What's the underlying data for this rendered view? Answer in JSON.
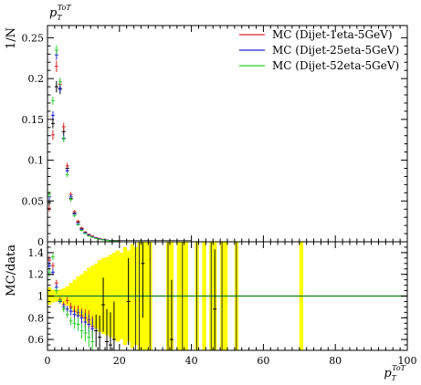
{
  "chart_data": [
    {
      "type": "scatter",
      "panel": "main",
      "title": "",
      "xlabel": "",
      "ylabel": "1/N",
      "ylim": [
        0,
        0.265
      ],
      "xlim": [
        0,
        100
      ],
      "x_ticks": [],
      "y_ticks": [
        0,
        0.05,
        0.1,
        0.15,
        0.2,
        0.25
      ],
      "y_tick_labels": [
        "0",
        "0.05",
        "0.1",
        "0.15",
        "0.2",
        "0.25"
      ],
      "grid": false,
      "legend_position": "top-right",
      "series": [
        {
          "name": "MC (Dijet-1eta-5GeV)",
          "color": "#d62728",
          "x": [
            0.5,
            1.5,
            2.5,
            3.5,
            4.5,
            5.5,
            6.5,
            7.5,
            8.5,
            9.5,
            10.5,
            11.5,
            12.5,
            13.5,
            14.5,
            15.5,
            16.5,
            17.5,
            18.5,
            19.5
          ],
          "y": [
            0.041,
            0.131,
            0.215,
            0.193,
            0.141,
            0.093,
            0.058,
            0.037,
            0.025,
            0.017,
            0.012,
            0.009,
            0.007,
            0.005,
            0.004,
            0.003,
            0.002,
            0.0015,
            0.001,
            0.0008
          ],
          "yerr": [
            0.004,
            0.006,
            0.007,
            0.006,
            0.005,
            0.004,
            0.003,
            0.002,
            0.002,
            0.0015,
            0.001,
            0.001,
            0.0008,
            0.0007,
            0.0006,
            0.0005,
            0.0004,
            0.0004,
            0.0003,
            0.0003
          ]
        },
        {
          "name": "MC (Dijet-25eta-5GeV)",
          "color": "#1f1fd6",
          "x": [
            0.5,
            1.5,
            2.5,
            3.5,
            4.5,
            5.5,
            6.5,
            7.5,
            8.5,
            9.5,
            10.5,
            11.5,
            12.5,
            13.5,
            14.5,
            15.5,
            16.5,
            17.5,
            18.5,
            19.5
          ],
          "y": [
            0.055,
            0.155,
            0.229,
            0.188,
            0.127,
            0.087,
            0.055,
            0.034,
            0.022,
            0.015,
            0.011,
            0.008,
            0.006,
            0.0045,
            0.0035,
            0.0027,
            0.002,
            0.0014,
            0.001,
            0.0007
          ],
          "yerr": [
            0.004,
            0.005,
            0.006,
            0.005,
            0.004,
            0.003,
            0.003,
            0.002,
            0.0015,
            0.0012,
            0.001,
            0.0008,
            0.0007,
            0.0006,
            0.0005,
            0.0004,
            0.0004,
            0.0003,
            0.0003,
            0.0003
          ]
        },
        {
          "name": "MC (Dijet-52eta-5GeV)",
          "color": "#2ecc2e",
          "x": [
            0.5,
            1.5,
            2.5,
            3.5,
            4.5,
            5.5,
            6.5,
            7.5,
            8.5,
            9.5,
            10.5,
            11.5,
            12.5,
            13.5,
            14.5,
            15.5,
            16.5,
            17.5,
            18.5,
            19.5
          ],
          "y": [
            0.058,
            0.173,
            0.235,
            0.196,
            0.126,
            0.082,
            0.052,
            0.032,
            0.021,
            0.014,
            0.01,
            0.007,
            0.0055,
            0.004,
            0.003,
            0.0023,
            0.0017,
            0.0012,
            0.0009,
            0.0006
          ],
          "yerr": [
            0.004,
            0.005,
            0.006,
            0.005,
            0.004,
            0.003,
            0.003,
            0.002,
            0.0015,
            0.0012,
            0.001,
            0.0008,
            0.0007,
            0.0006,
            0.0005,
            0.0004,
            0.0004,
            0.0003,
            0.0003,
            0.0003
          ]
        }
      ],
      "data": {
        "color": "#000000",
        "x": [
          0.5,
          1.5,
          2.5,
          3.5,
          4.5,
          5.5,
          6.5,
          7.5,
          8.5,
          9.5,
          10.5,
          11.5,
          12.5,
          13.5,
          14.5,
          15.5,
          16.5,
          17.5,
          18.5,
          19.5
        ],
        "y": [
          0.048,
          0.145,
          0.19,
          0.187,
          0.135,
          0.09,
          0.053,
          0.035,
          0.024,
          0.016,
          0.0115,
          0.0085,
          0.0065,
          0.0048,
          0.0036,
          0.0028,
          0.0021,
          0.0015,
          0.0011,
          0.0008
        ],
        "yerr": [
          0.004,
          0.006,
          0.007,
          0.006,
          0.005,
          0.004,
          0.003,
          0.002,
          0.002,
          0.0015,
          0.001,
          0.001,
          0.0008,
          0.0007,
          0.0006,
          0.0005,
          0.0004,
          0.0004,
          0.0003,
          0.0003
        ]
      }
    },
    {
      "type": "scatter",
      "panel": "ratio",
      "title": "",
      "xlabel": "p_T^ToT",
      "ylabel": "MC/data",
      "ylim": [
        0.5,
        1.5
      ],
      "xlim": [
        0,
        100
      ],
      "x_ticks": [
        0,
        20,
        40,
        60,
        80,
        100
      ],
      "x_tick_labels": [
        "0",
        "20",
        "40",
        "60",
        "80",
        "100"
      ],
      "y_ticks": [
        0.6,
        0.8,
        1,
        1.2,
        1.4
      ],
      "y_tick_labels": [
        "0.6",
        "0.8",
        "1",
        "1.2",
        "1.4"
      ],
      "reference_line": 1,
      "reference_color": "#2a8a2a",
      "band_color": "#ffff00",
      "band": {
        "x": [
          0.5,
          1.5,
          2.5,
          3.5,
          4.5,
          5.5,
          6.5,
          7.5,
          8.5,
          9.5,
          10.5,
          11.5,
          12.5,
          13.5,
          14.5,
          15.5,
          16.5,
          17.5,
          18.5,
          19.5,
          20.5,
          21.5,
          22.5,
          23.5,
          24.5,
          25.5,
          26.5,
          27.5,
          28.5,
          33.5,
          34.5,
          36.5,
          37.5,
          38.5,
          41.5,
          43.5,
          45.5,
          46.5,
          48.5,
          49.5,
          52.5,
          70.5
        ],
        "half_width": [
          0.08,
          0.06,
          0.05,
          0.06,
          0.07,
          0.09,
          0.12,
          0.15,
          0.18,
          0.2,
          0.23,
          0.26,
          0.28,
          0.3,
          0.33,
          0.35,
          0.36,
          0.38,
          0.4,
          0.42,
          0.4,
          0.45,
          0.42,
          0.48,
          0.45,
          0.6,
          0.6,
          0.6,
          0.6,
          0.6,
          0.6,
          0.6,
          0.6,
          0.6,
          0.6,
          0.6,
          0.6,
          0.6,
          0.6,
          0.6,
          0.6,
          0.6
        ]
      },
      "series": [
        {
          "name": "MC (Dijet-1eta-5GeV)",
          "color": "#d62728",
          "x": [
            0.5,
            1.5,
            2.5,
            3.5,
            4.5,
            5.5,
            6.5,
            7.5,
            8.5,
            9.5,
            10.5,
            11.5,
            12.5
          ],
          "y": [
            1.33,
            1.28,
            1.12,
            0.97,
            0.92,
            0.96,
            0.9,
            0.86,
            0.85,
            0.82,
            0.8,
            0.78,
            0.72
          ],
          "yerr": [
            0.04,
            0.03,
            0.03,
            0.02,
            0.03,
            0.03,
            0.04,
            0.05,
            0.06,
            0.07,
            0.08,
            0.09,
            0.1
          ]
        },
        {
          "name": "MC (Dijet-25eta-5GeV)",
          "color": "#1f1fd6",
          "x": [
            0.5,
            1.5,
            2.5,
            3.5,
            4.5,
            5.5,
            6.5,
            7.5,
            8.5,
            9.5,
            10.5,
            11.5,
            12.5
          ],
          "y": [
            1.28,
            1.22,
            1.08,
            0.95,
            0.9,
            0.88,
            0.86,
            0.83,
            0.82,
            0.8,
            0.76,
            0.74,
            0.7
          ],
          "yerr": [
            0.04,
            0.03,
            0.03,
            0.02,
            0.03,
            0.03,
            0.04,
            0.05,
            0.06,
            0.07,
            0.08,
            0.09,
            0.1
          ]
        },
        {
          "name": "MC (Dijet-52eta-5GeV)",
          "color": "#2ecc2e",
          "x": [
            0.5,
            1.5,
            2.5,
            3.5,
            4.5,
            5.5,
            6.5,
            7.5,
            8.5,
            9.5,
            10.5,
            11.5,
            12.5
          ],
          "y": [
            1.22,
            1.36,
            1.05,
            0.96,
            0.88,
            0.83,
            0.77,
            0.75,
            0.74,
            0.68,
            0.66,
            0.62,
            0.58
          ],
          "yerr": [
            0.04,
            0.03,
            0.03,
            0.02,
            0.03,
            0.03,
            0.04,
            0.05,
            0.06,
            0.07,
            0.08,
            0.09,
            0.1
          ]
        }
      ],
      "black_points": {
        "color": "#000000",
        "x": [
          13.5,
          14.5,
          15.5,
          16.5,
          17.5,
          18.5,
          22.5,
          26.5,
          34.5,
          46.5
        ],
        "y": [
          0.68,
          0.62,
          0.92,
          0.58,
          0.55,
          0.6,
          0.95,
          1.3,
          0.6,
          0.88
        ],
        "yerr": [
          0.15,
          0.2,
          0.25,
          0.3,
          0.3,
          0.35,
          0.4,
          0.5,
          0.55,
          0.55
        ]
      }
    }
  ],
  "labels": {
    "xaxis_symbol": "p",
    "xaxis_sub": "T",
    "xaxis_sup": "ToT",
    "main_ylabel": "1/N",
    "ratio_ylabel": "MC/data"
  }
}
